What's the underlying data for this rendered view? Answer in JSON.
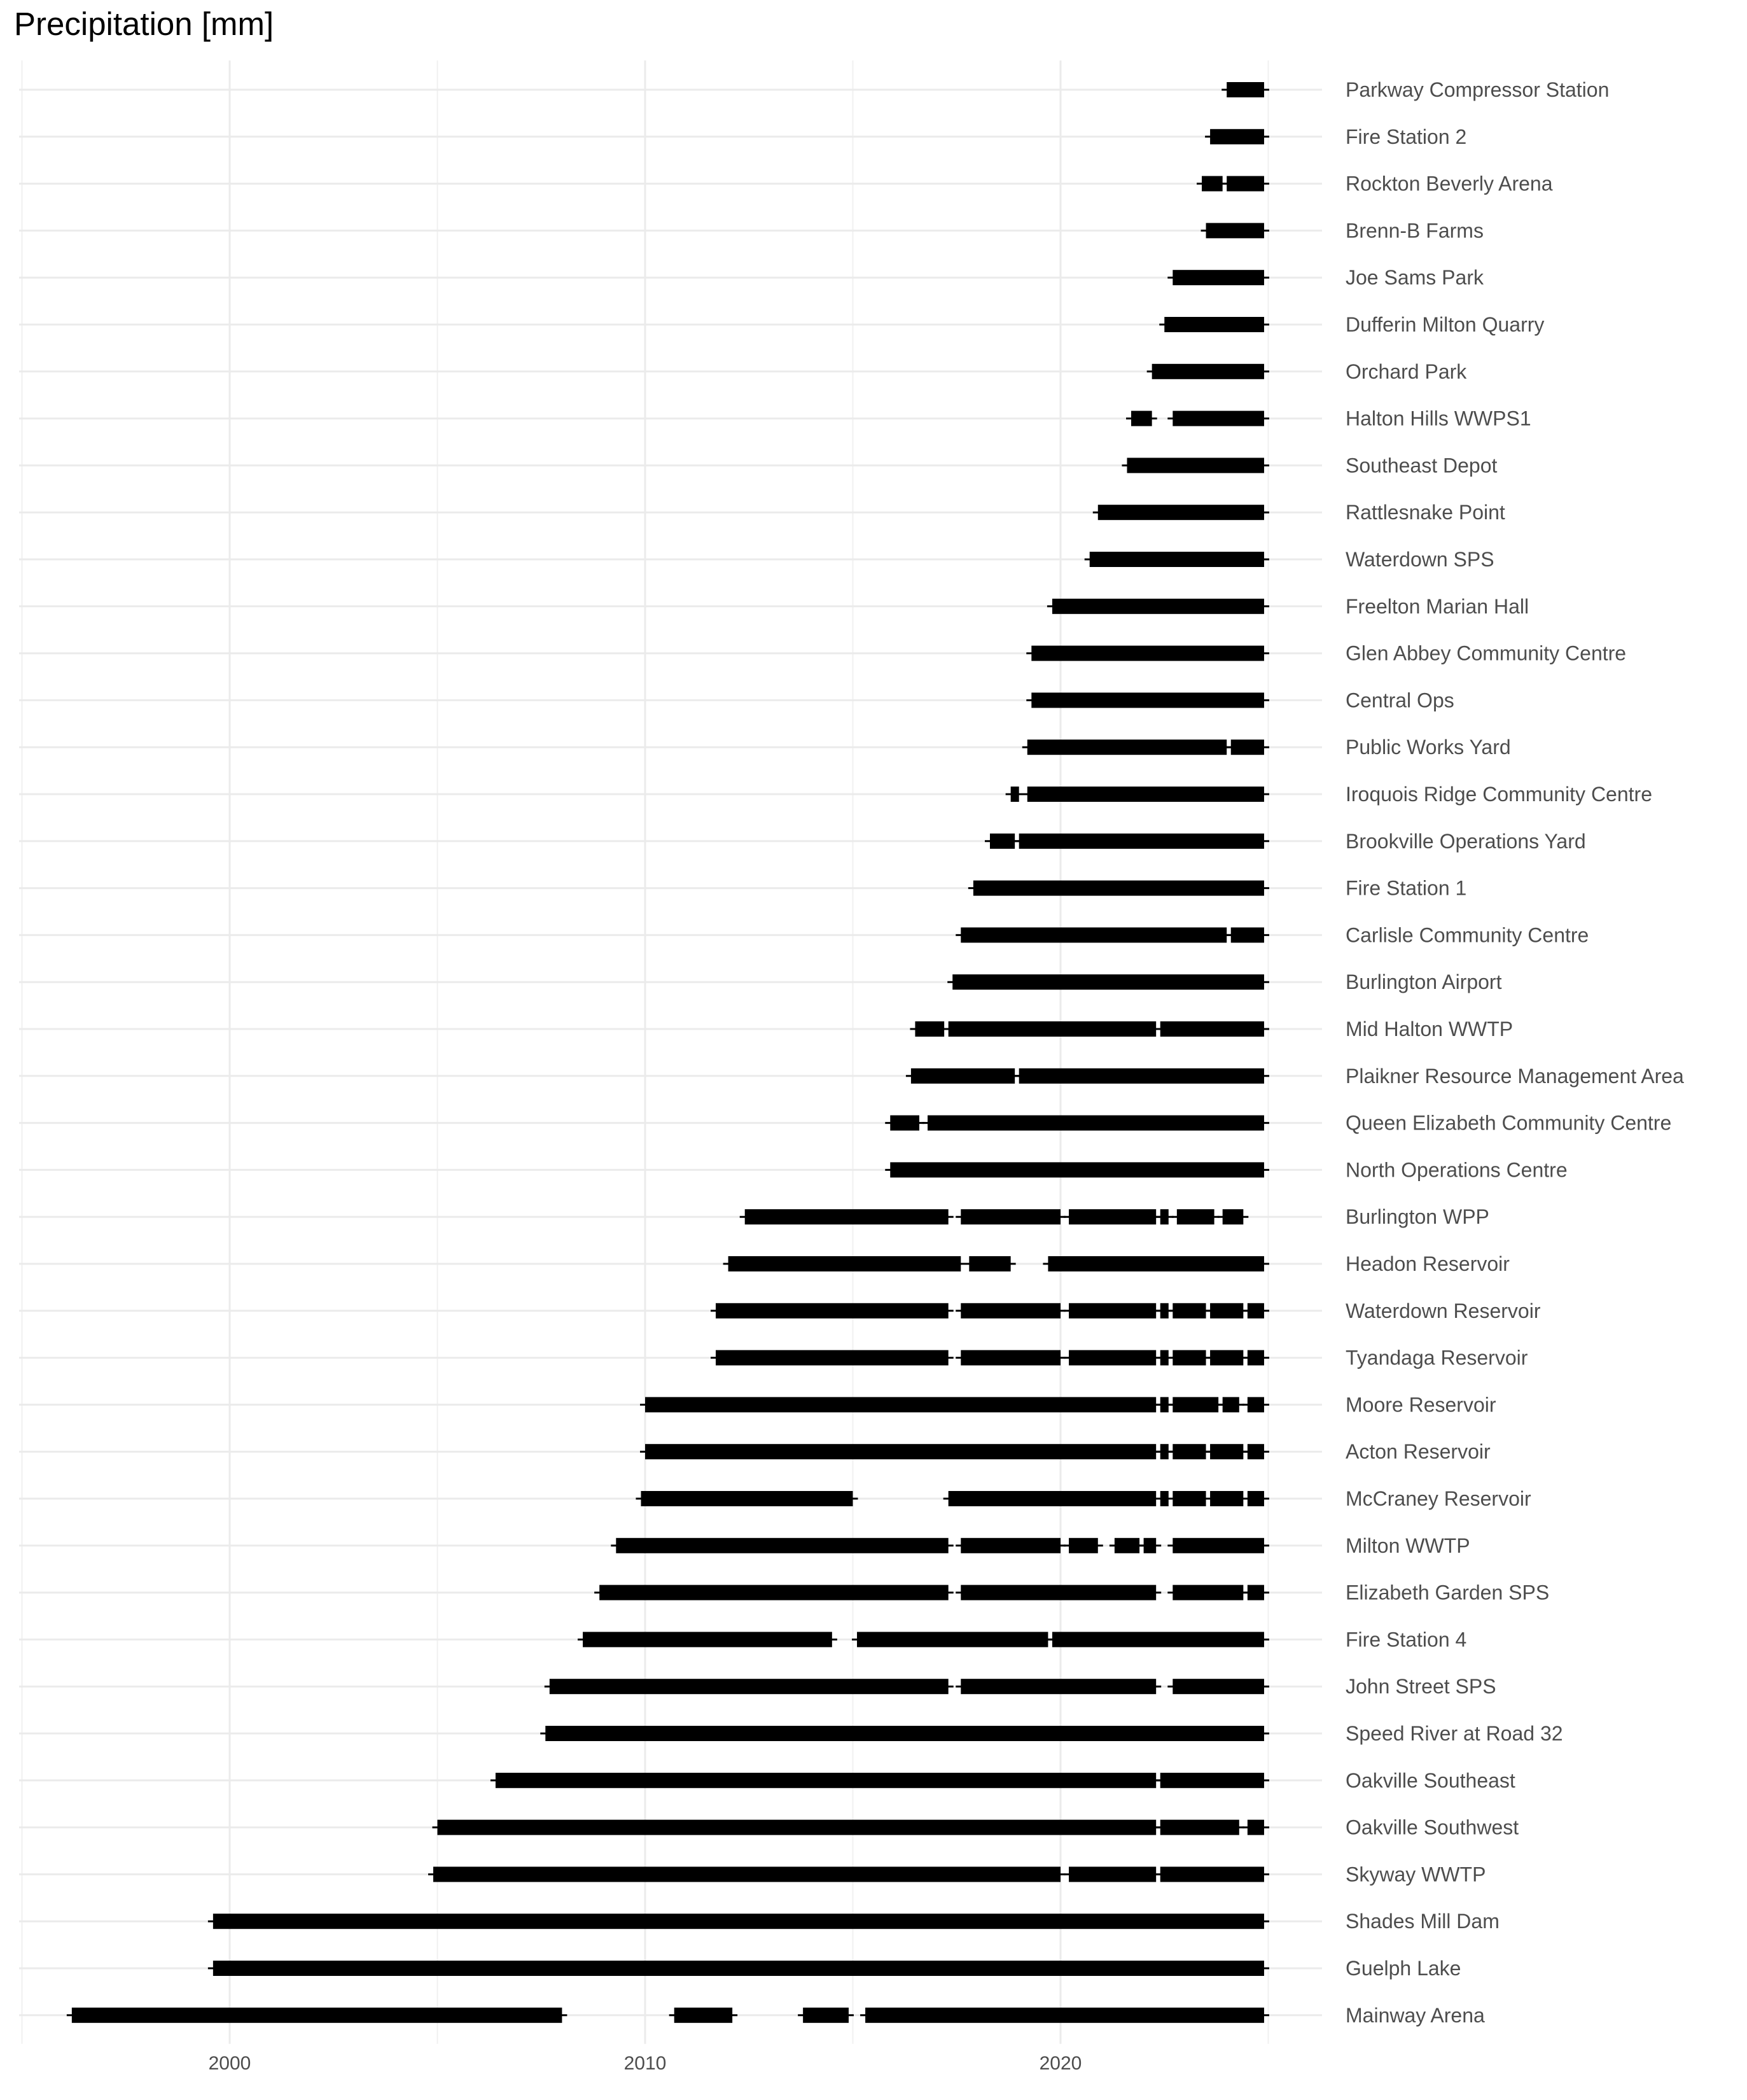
{
  "chart_data": {
    "type": "timeline",
    "title": "Precipitation [mm]",
    "xlabel": "",
    "ylabel": "",
    "xlim": [
      1995.0,
      2026.0
    ],
    "xticks": [
      2000,
      2010,
      2020
    ],
    "grid": true,
    "bar_color": "#000000",
    "stations": [
      {
        "name": "Parkway Compressor Station",
        "segments": [
          [
            2024.0,
            2024.9
          ]
        ]
      },
      {
        "name": "Fire Station 2",
        "segments": [
          [
            2023.6,
            2024.9
          ]
        ]
      },
      {
        "name": "Rockton Beverly Arena",
        "segments": [
          [
            2023.4,
            2023.9
          ],
          [
            2024.0,
            2024.9
          ]
        ]
      },
      {
        "name": "Brenn-B Farms",
        "segments": [
          [
            2023.5,
            2024.9
          ]
        ]
      },
      {
        "name": "Joe Sams Park",
        "segments": [
          [
            2022.7,
            2024.9
          ]
        ]
      },
      {
        "name": "Dufferin Milton Quarry",
        "segments": [
          [
            2022.5,
            2024.9
          ]
        ]
      },
      {
        "name": "Orchard Park",
        "segments": [
          [
            2022.2,
            2024.9
          ]
        ]
      },
      {
        "name": "Halton Hills WWPS1",
        "segments": [
          [
            2021.7,
            2022.2
          ],
          [
            2022.7,
            2024.9
          ]
        ]
      },
      {
        "name": "Southeast Depot",
        "segments": [
          [
            2021.6,
            2024.9
          ]
        ]
      },
      {
        "name": "Rattlesnake Point",
        "segments": [
          [
            2020.9,
            2024.9
          ]
        ]
      },
      {
        "name": "Waterdown SPS",
        "segments": [
          [
            2020.7,
            2024.9
          ]
        ]
      },
      {
        "name": "Freelton Marian Hall",
        "segments": [
          [
            2019.8,
            2024.9
          ]
        ]
      },
      {
        "name": "Glen Abbey Community Centre",
        "segments": [
          [
            2019.3,
            2024.9
          ]
        ]
      },
      {
        "name": "Central Ops",
        "segments": [
          [
            2019.3,
            2024.9
          ]
        ]
      },
      {
        "name": "Public Works Yard",
        "segments": [
          [
            2019.2,
            2024.0
          ],
          [
            2024.1,
            2024.9
          ]
        ]
      },
      {
        "name": "Iroquois Ridge Community Centre",
        "segments": [
          [
            2018.8,
            2019.0
          ],
          [
            2019.2,
            2024.9
          ]
        ]
      },
      {
        "name": "Brookville Operations Yard",
        "segments": [
          [
            2018.3,
            2018.9
          ],
          [
            2019.0,
            2024.9
          ]
        ]
      },
      {
        "name": "Fire Station 1",
        "segments": [
          [
            2017.9,
            2024.9
          ]
        ]
      },
      {
        "name": "Carlisle Community Centre",
        "segments": [
          [
            2017.6,
            2024.0
          ],
          [
            2024.1,
            2024.9
          ]
        ]
      },
      {
        "name": "Burlington Airport",
        "segments": [
          [
            2017.4,
            2024.9
          ]
        ]
      },
      {
        "name": "Mid Halton WWTP",
        "segments": [
          [
            2016.5,
            2017.2
          ],
          [
            2017.3,
            2022.3
          ],
          [
            2022.4,
            2024.9
          ]
        ]
      },
      {
        "name": "Plaikner Resource Management Area",
        "segments": [
          [
            2016.4,
            2018.9
          ],
          [
            2019.0,
            2024.9
          ]
        ]
      },
      {
        "name": "Queen Elizabeth Community Centre",
        "segments": [
          [
            2015.9,
            2016.6
          ],
          [
            2016.8,
            2024.9
          ]
        ]
      },
      {
        "name": "North Operations Centre",
        "segments": [
          [
            2015.9,
            2024.9
          ]
        ]
      },
      {
        "name": "Burlington WPP",
        "segments": [
          [
            2012.4,
            2017.3
          ],
          [
            2017.6,
            2020.0
          ],
          [
            2020.2,
            2022.3
          ],
          [
            2022.4,
            2022.6
          ],
          [
            2022.8,
            2023.7
          ],
          [
            2023.9,
            2024.4
          ]
        ]
      },
      {
        "name": "Headon Reservoir",
        "segments": [
          [
            2012.0,
            2017.6
          ],
          [
            2017.8,
            2018.8
          ],
          [
            2019.7,
            2024.9
          ]
        ]
      },
      {
        "name": "Waterdown Reservoir",
        "segments": [
          [
            2011.7,
            2017.3
          ],
          [
            2017.6,
            2020.0
          ],
          [
            2020.2,
            2022.3
          ],
          [
            2022.4,
            2022.6
          ],
          [
            2022.7,
            2023.5
          ],
          [
            2023.6,
            2024.4
          ],
          [
            2024.5,
            2024.9
          ]
        ]
      },
      {
        "name": "Tyandaga Reservoir",
        "segments": [
          [
            2011.7,
            2017.3
          ],
          [
            2017.6,
            2020.0
          ],
          [
            2020.2,
            2022.3
          ],
          [
            2022.4,
            2022.6
          ],
          [
            2022.7,
            2023.5
          ],
          [
            2023.6,
            2024.4
          ],
          [
            2024.5,
            2024.9
          ]
        ]
      },
      {
        "name": "Moore Reservoir",
        "segments": [
          [
            2010.0,
            2022.3
          ],
          [
            2022.4,
            2022.6
          ],
          [
            2022.7,
            2023.8
          ],
          [
            2023.9,
            2024.3
          ],
          [
            2024.5,
            2024.9
          ]
        ]
      },
      {
        "name": "Acton Reservoir",
        "segments": [
          [
            2010.0,
            2022.3
          ],
          [
            2022.4,
            2022.6
          ],
          [
            2022.7,
            2023.5
          ],
          [
            2023.6,
            2024.4
          ],
          [
            2024.5,
            2024.9
          ]
        ]
      },
      {
        "name": "McCraney Reservoir",
        "segments": [
          [
            2009.9,
            2015.0
          ],
          [
            2017.3,
            2022.3
          ],
          [
            2022.4,
            2022.6
          ],
          [
            2022.7,
            2023.5
          ],
          [
            2023.6,
            2024.4
          ],
          [
            2024.5,
            2024.9
          ]
        ]
      },
      {
        "name": "Milton WWTP",
        "segments": [
          [
            2009.3,
            2017.3
          ],
          [
            2017.6,
            2020.0
          ],
          [
            2020.2,
            2020.9
          ],
          [
            2021.3,
            2021.9
          ],
          [
            2022.0,
            2022.3
          ],
          [
            2022.7,
            2024.9
          ]
        ]
      },
      {
        "name": "Elizabeth Garden SPS",
        "segments": [
          [
            2008.9,
            2017.3
          ],
          [
            2017.6,
            2022.3
          ],
          [
            2022.7,
            2024.4
          ],
          [
            2024.5,
            2024.9
          ]
        ]
      },
      {
        "name": "Fire Station 4",
        "segments": [
          [
            2008.5,
            2014.5
          ],
          [
            2015.1,
            2019.7
          ],
          [
            2019.8,
            2024.9
          ]
        ]
      },
      {
        "name": "John Street SPS",
        "segments": [
          [
            2007.7,
            2017.3
          ],
          [
            2017.6,
            2022.3
          ],
          [
            2022.7,
            2024.9
          ]
        ]
      },
      {
        "name": "Speed River at Road 32",
        "segments": [
          [
            2007.6,
            2024.9
          ]
        ]
      },
      {
        "name": "Oakville Southeast",
        "segments": [
          [
            2006.4,
            2022.3
          ],
          [
            2022.4,
            2024.9
          ]
        ]
      },
      {
        "name": "Oakville Southwest",
        "segments": [
          [
            2005.0,
            2022.3
          ],
          [
            2022.4,
            2024.3
          ],
          [
            2024.5,
            2024.9
          ]
        ]
      },
      {
        "name": "Skyway WWTP",
        "segments": [
          [
            2004.9,
            2020.0
          ],
          [
            2020.2,
            2022.3
          ],
          [
            2022.4,
            2024.9
          ]
        ]
      },
      {
        "name": "Shades Mill Dam",
        "segments": [
          [
            1999.6,
            2024.9
          ]
        ]
      },
      {
        "name": "Guelph Lake",
        "segments": [
          [
            1999.6,
            2024.9
          ]
        ]
      },
      {
        "name": "Mainway Arena",
        "segments": [
          [
            1996.2,
            2008.0
          ],
          [
            2010.7,
            2012.1
          ],
          [
            2013.8,
            2014.9
          ],
          [
            2015.3,
            2024.9
          ]
        ]
      }
    ]
  }
}
